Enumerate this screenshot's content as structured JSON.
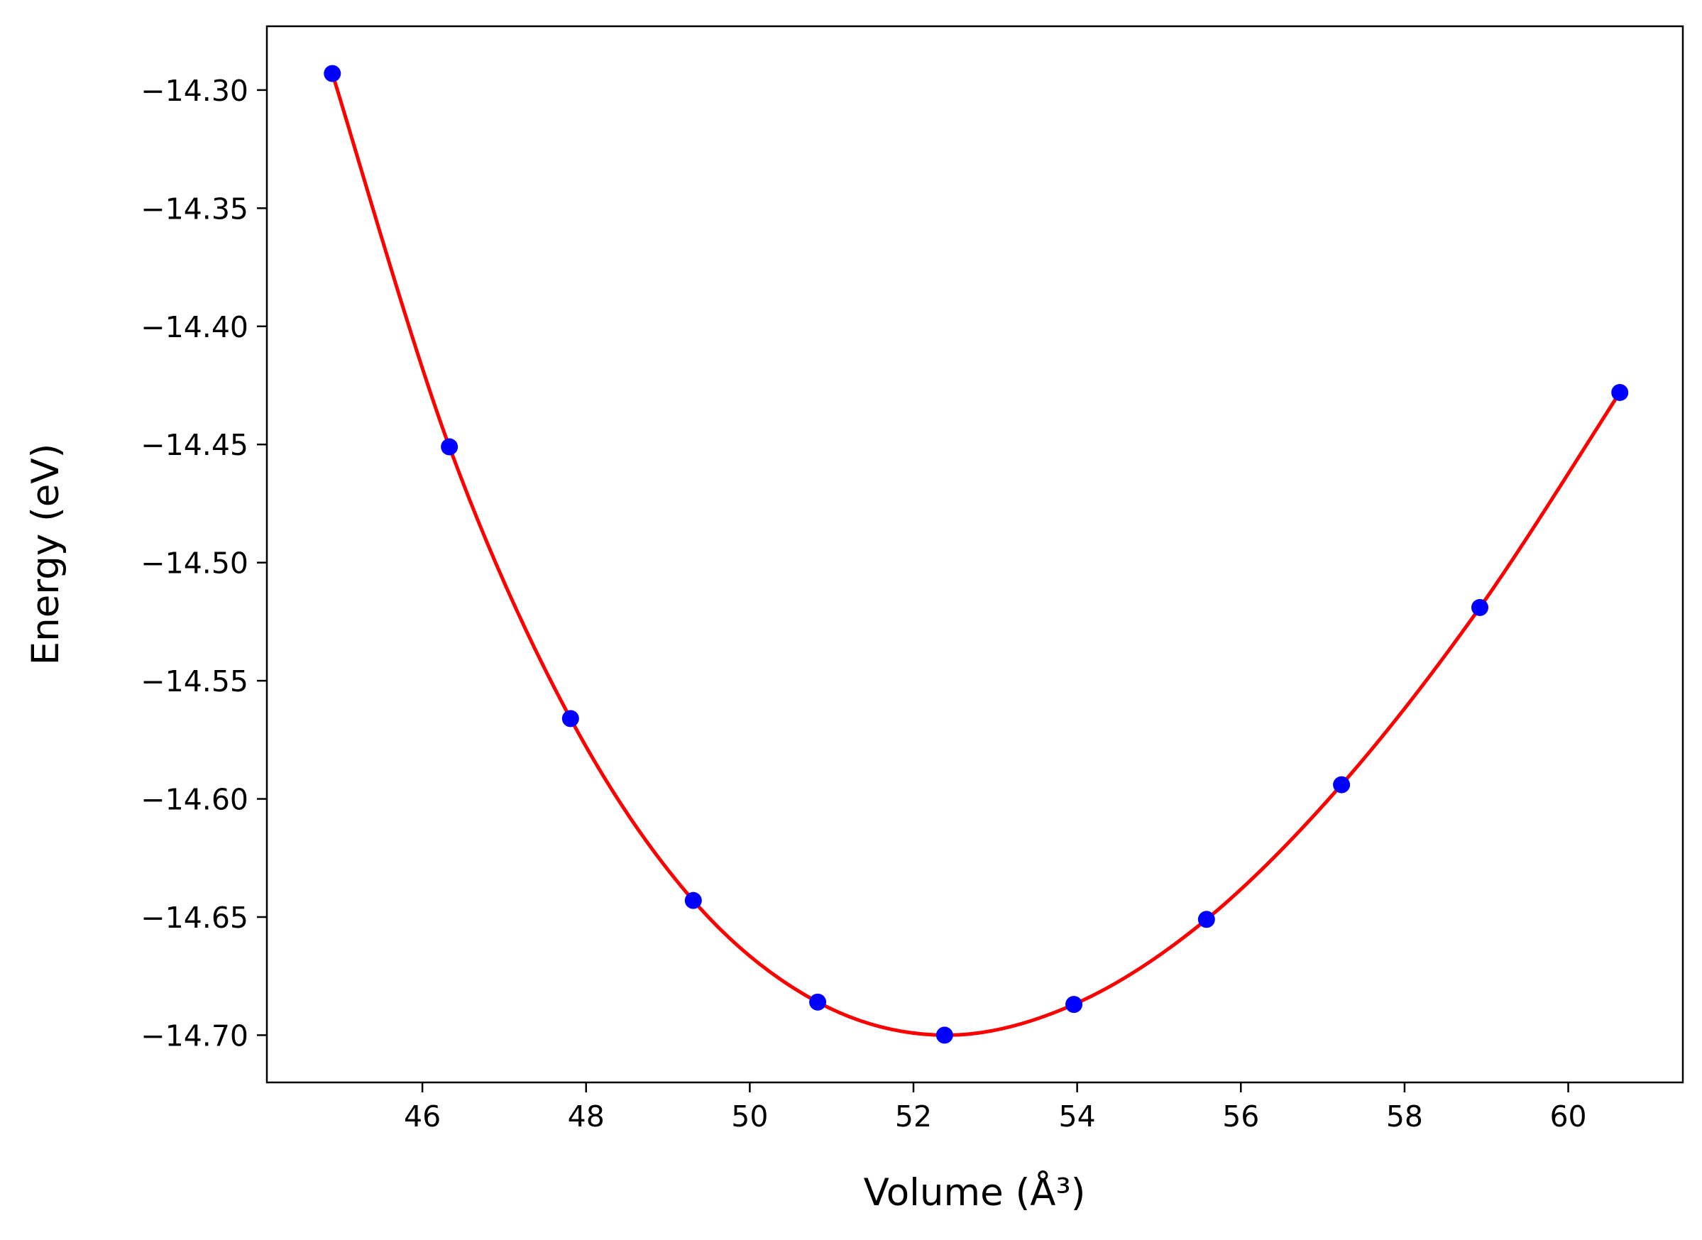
{
  "chart_data": {
    "type": "line",
    "title": "",
    "xlabel": "Volume",
    "xlabel_unit": "(Å³)",
    "ylabel": "Energy",
    "ylabel_unit": "(eV)",
    "xlim": [
      44.1,
      61.4
    ],
    "ylim": [
      -14.72,
      -14.273
    ],
    "xticks": [
      46,
      48,
      50,
      52,
      54,
      56,
      58,
      60
    ],
    "yticks": [
      -14.3,
      -14.35,
      -14.4,
      -14.45,
      -14.5,
      -14.55,
      -14.6,
      -14.65,
      -14.7
    ],
    "xtick_labels": [
      "46",
      "48",
      "50",
      "52",
      "54",
      "56",
      "58",
      "60"
    ],
    "ytick_labels": [
      "−14.30",
      "−14.35",
      "−14.40",
      "−14.45",
      "−14.50",
      "−14.55",
      "−14.60",
      "−14.65",
      "−14.70"
    ],
    "grid": false,
    "legend": "none",
    "series": [
      {
        "kind": "points",
        "color": "#0000ff",
        "x": [
          44.9,
          46.33,
          47.81,
          49.31,
          50.83,
          52.38,
          53.96,
          55.58,
          57.23,
          58.92,
          60.63
        ],
        "y": [
          -14.293,
          -14.451,
          -14.566,
          -14.643,
          -14.686,
          -14.7,
          -14.687,
          -14.651,
          -14.594,
          -14.519,
          -14.428
        ]
      },
      {
        "kind": "fit-curve",
        "color": "#ff0000",
        "x": [
          44.9,
          46.33,
          47.81,
          49.31,
          50.83,
          52.38,
          53.96,
          55.58,
          57.23,
          58.92,
          60.63
        ],
        "y": [
          -14.293,
          -14.451,
          -14.566,
          -14.643,
          -14.686,
          -14.7,
          -14.687,
          -14.651,
          -14.594,
          -14.519,
          -14.428
        ]
      }
    ]
  }
}
